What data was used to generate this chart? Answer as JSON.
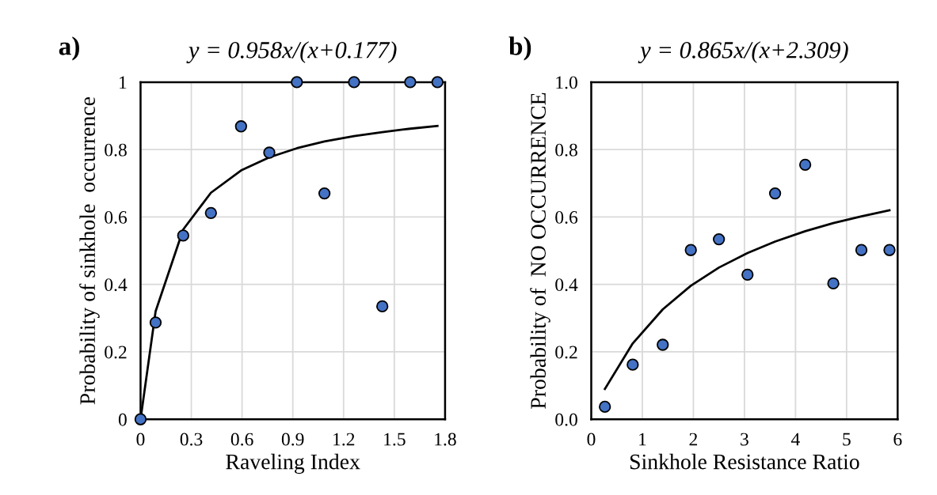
{
  "chart_data": [
    {
      "type": "scatter",
      "title": "y = 0.958x/(x+0.177)",
      "annotations": [
        "a)"
      ],
      "xlabel": "Raveling Index",
      "ylabel": "Probability of sinkhole  occurrence",
      "xlim": [
        0,
        1.8
      ],
      "xticks": [
        0,
        0.3,
        0.6,
        0.9,
        1.2,
        1.5,
        1.8
      ],
      "ylim": [
        0,
        1
      ],
      "yticks": [
        0,
        0.2,
        0.4,
        0.6,
        0.8,
        1
      ],
      "grid": true,
      "legend": false,
      "series": [
        {
          "marker": "circle",
          "color": "#4472c4",
          "x": [
            0,
            0.089,
            0.252,
            0.416,
            0.594,
            0.761,
            0.924,
            1.087,
            1.262,
            1.429,
            1.594,
            1.755
          ],
          "values": [
            0,
            0.287,
            0.545,
            0.612,
            0.869,
            0.791,
            1,
            0.67,
            1,
            0.335,
            1,
            1
          ]
        },
        {
          "type": "line",
          "marker": "none",
          "color": "#000000",
          "x": [
            0,
            0.089,
            0.252,
            0.416,
            0.594,
            0.761,
            0.924,
            1.087,
            1.262,
            1.429,
            1.594,
            1.755
          ],
          "values": [
            0,
            0.32,
            0.563,
            0.672,
            0.738,
            0.777,
            0.804,
            0.824,
            0.84,
            0.852,
            0.862,
            0.87
          ]
        }
      ]
    },
    {
      "type": "scatter",
      "title": "y = 0.865x/(x+2.309)",
      "annotations": [
        "b)"
      ],
      "xlabel": "Sinkhole Resistance Ratio",
      "ylabel": "Probability of  NO OCCURRENCE",
      "xlim": [
        0,
        6
      ],
      "xticks": [
        0,
        1,
        2,
        3,
        4,
        5,
        6
      ],
      "ylim": [
        0,
        1
      ],
      "yticks": [
        {
          "value": 0,
          "label": "0.0"
        },
        0.2,
        0.4,
        0.6,
        0.8,
        {
          "value": 1,
          "label": "1.0"
        }
      ],
      "grid": true,
      "legend": false,
      "series": [
        {
          "marker": "circle",
          "color": "#4472c4",
          "x": [
            0.267,
            0.812,
            1.4,
            1.95,
            2.5,
            3.06,
            3.6,
            4.19,
            4.74,
            5.29,
            5.84
          ],
          "values": [
            0.037,
            0.162,
            0.221,
            0.502,
            0.534,
            0.429,
            0.67,
            0.755,
            0.403,
            0.502,
            0.502
          ]
        },
        {
          "type": "line",
          "marker": "none",
          "color": "#000000",
          "x": [
            0.267,
            0.812,
            1.4,
            1.95,
            2.5,
            3.06,
            3.6,
            4.19,
            4.74,
            5.29,
            5.84
          ],
          "values": [
            0.09,
            0.225,
            0.326,
            0.396,
            0.45,
            0.493,
            0.527,
            0.558,
            0.582,
            0.602,
            0.62
          ]
        }
      ]
    }
  ]
}
